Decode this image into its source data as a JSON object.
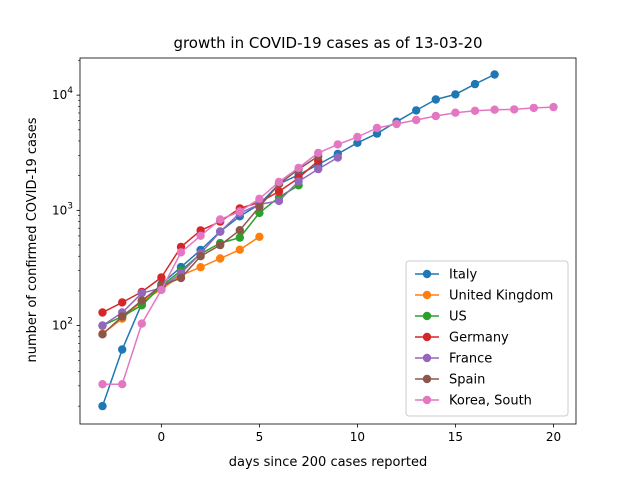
{
  "chart_data": {
    "type": "line",
    "title": "growth in COVID-19 cases as of 13-03-20",
    "xlabel": "days since 200 cases reported",
    "ylabel": "number of confirmed COVID-19 cases",
    "xlim": [
      -4.15,
      21.15
    ],
    "ylim": [
      14,
      21000
    ],
    "yscale": "log",
    "x_ticks": [
      {
        "value": 0,
        "label": "0"
      },
      {
        "value": 5,
        "label": "5"
      },
      {
        "value": 10,
        "label": "10"
      },
      {
        "value": 15,
        "label": "15"
      },
      {
        "value": 20,
        "label": "20"
      }
    ],
    "y_ticks": [
      {
        "value": 100,
        "base": "10",
        "exp": "2"
      },
      {
        "value": 1000,
        "base": "10",
        "exp": "3"
      },
      {
        "value": 10000,
        "base": "10",
        "exp": "4"
      }
    ],
    "grid": false,
    "legend_position": "lower-right",
    "series": [
      {
        "name": "Italy",
        "color": "#1f77b4",
        "x": [
          -3,
          -2,
          -1,
          0,
          1,
          2,
          3,
          4,
          5,
          6,
          7,
          8,
          9,
          10,
          11,
          12,
          13,
          14,
          15,
          16,
          17
        ],
        "y": [
          20,
          62,
          155,
          229,
          322,
          453,
          655,
          888,
          1128,
          1694,
          2036,
          2502,
          3089,
          3858,
          4636,
          5883,
          7375,
          9172,
          10149,
          12462,
          15113
        ]
      },
      {
        "name": "United Kingdom",
        "color": "#ff7f0e",
        "x": [
          -3,
          -2,
          -1,
          0,
          1,
          2,
          3,
          4,
          5
        ],
        "y": [
          85,
          115,
          163,
          206,
          273,
          321,
          382,
          456,
          590
        ]
      },
      {
        "name": "US",
        "color": "#2ca02c",
        "x": [
          -3,
          -2,
          -1,
          0,
          1,
          2,
          3,
          4,
          5,
          6,
          7
        ],
        "y": [
          100,
          120,
          150,
          220,
          300,
          420,
          520,
          580,
          950,
          1300,
          1650
        ]
      },
      {
        "name": "Germany",
        "color": "#d62728",
        "x": [
          -3,
          -2,
          -1,
          0,
          1,
          2,
          3,
          4,
          5,
          6,
          7,
          8
        ],
        "y": [
          130,
          159,
          196,
          262,
          482,
          670,
          799,
          1040,
          1176,
          1457,
          1908,
          2700
        ]
      },
      {
        "name": "France",
        "color": "#9467bd",
        "x": [
          -3,
          -2,
          -1,
          0,
          1,
          2,
          3,
          4,
          5,
          6,
          7,
          8,
          9
        ],
        "y": [
          100,
          130,
          191,
          212,
          285,
          423,
          653,
          949,
          1126,
          1209,
          1784,
          2281,
          2876
        ]
      },
      {
        "name": "Spain",
        "color": "#8c564b",
        "x": [
          -3,
          -2,
          -1,
          0,
          1,
          2,
          3,
          4,
          5,
          6,
          7,
          8
        ],
        "y": [
          84,
          120,
          165,
          222,
          259,
          400,
          500,
          673,
          1073,
          1695,
          2277,
          2950
        ]
      },
      {
        "name": "Korea, South",
        "color": "#e377c2",
        "x": [
          -3,
          -2,
          -1,
          0,
          1,
          2,
          3,
          4,
          5,
          6,
          7,
          8,
          9,
          10,
          11,
          12,
          13,
          14,
          15,
          16,
          17,
          18,
          19,
          20
        ],
        "y": [
          31,
          31,
          104,
          204,
          433,
          602,
          833,
          977,
          1261,
          1766,
          2337,
          3150,
          3736,
          4335,
          5186,
          5621,
          6088,
          6593,
          7041,
          7313,
          7478,
          7513,
          7755,
          7869
        ]
      }
    ]
  }
}
